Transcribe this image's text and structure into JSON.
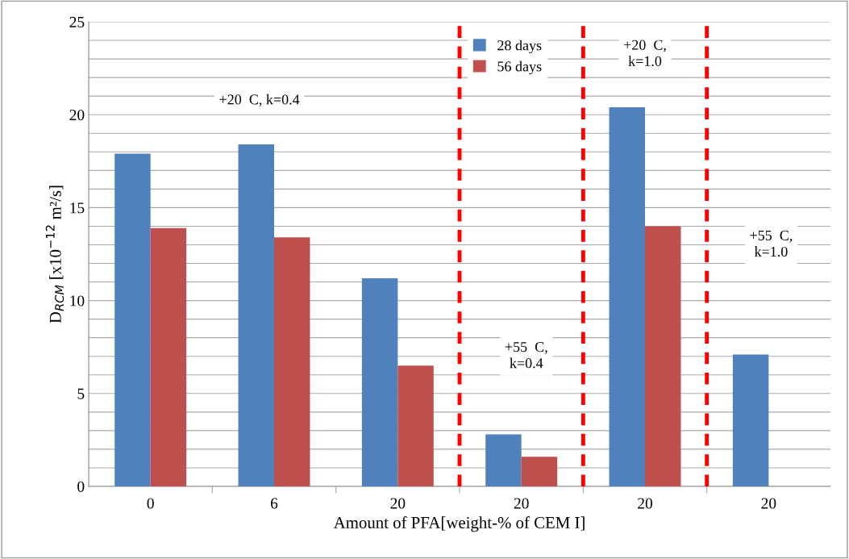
{
  "chart_data": {
    "type": "bar",
    "xlabel": "Amount of PFA[weight-% of CEM I]",
    "ylabel": "D$_{RCM}$ [x10$^{−12}$ m²/s]",
    "categories": [
      "0",
      "6",
      "20",
      "20",
      "20",
      "20"
    ],
    "series": [
      {
        "name": "28 days",
        "color": "#4f81bd",
        "values": [
          17.9,
          18.4,
          11.2,
          2.8,
          20.4,
          7.1
        ]
      },
      {
        "name": "56 days",
        "color": "#c0504d",
        "values": [
          13.9,
          13.4,
          6.5,
          1.6,
          14.0,
          null
        ]
      }
    ],
    "ylim": [
      0,
      25
    ],
    "yticks": [
      0,
      {
        "value": 1,
        "label": null
      },
      {
        "value": 2,
        "label": null
      },
      {
        "value": 3,
        "label": null
      },
      {
        "value": 4,
        "label": null
      },
      5,
      {
        "value": 6,
        "label": null
      },
      {
        "value": 7,
        "label": null
      },
      {
        "value": 8,
        "label": null
      },
      {
        "value": 9,
        "label": null
      },
      10,
      {
        "value": 11,
        "label": null
      },
      {
        "value": 12,
        "label": null
      },
      {
        "value": 13,
        "label": null
      },
      {
        "value": 14,
        "label": null
      },
      15,
      {
        "value": 16,
        "label": null
      },
      {
        "value": 17,
        "label": null
      },
      {
        "value": 18,
        "label": null
      },
      {
        "value": 19,
        "label": null
      },
      20,
      {
        "value": 21,
        "label": null
      },
      {
        "value": 22,
        "label": null
      },
      {
        "value": 23,
        "label": null
      },
      {
        "value": 24,
        "label": null
      },
      25
    ],
    "grid": "y",
    "legend": "top",
    "annotations": [
      "+20  C, k=0.4",
      "+55  C,\nk=0.4",
      "+20  C,\nk=1.0",
      "+55  C,\nk=1.0"
    ]
  }
}
